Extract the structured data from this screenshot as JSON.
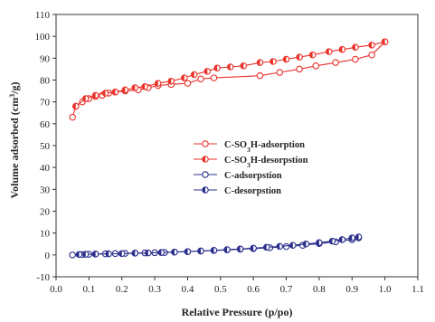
{
  "chart_data": {
    "type": "line",
    "title": "",
    "xlabel": "Relative Pressure (p/po)",
    "ylabel_parts": [
      "Volume adsorbed (cm",
      "3",
      "/g)"
    ],
    "xlim": [
      0.0,
      1.1
    ],
    "ylim": [
      -10,
      110
    ],
    "xticks": [
      "0.0",
      "0.1",
      "0.2",
      "0.3",
      "0.4",
      "0.5",
      "0.6",
      "0.7",
      "0.8",
      "0.9",
      "1.0",
      "1.1"
    ],
    "yticks": [
      "-10",
      "0",
      "10",
      "20",
      "30",
      "40",
      "50",
      "60",
      "70",
      "80",
      "90",
      "100",
      "110"
    ],
    "grid": false,
    "legend_position": "center",
    "series": [
      {
        "name_parts": [
          "C-SO",
          "3",
          "H-adsorption"
        ],
        "color": "#e8322a",
        "marker": "open",
        "x": [
          0.05,
          0.06,
          0.08,
          0.1,
          0.12,
          0.14,
          0.16,
          0.18,
          0.21,
          0.25,
          0.28,
          0.31,
          0.35,
          0.4,
          0.44,
          0.48,
          0.62,
          0.68,
          0.74,
          0.79,
          0.85,
          0.91,
          0.96,
          1.0
        ],
        "y": [
          63,
          68,
          70,
          71.5,
          72.5,
          73,
          74,
          74.5,
          75,
          75.5,
          76.5,
          77.5,
          78,
          78.5,
          80.5,
          81,
          82,
          83.5,
          85,
          86.5,
          88,
          89.5,
          91.5,
          97.5
        ]
      },
      {
        "name_parts": [
          "C-SO",
          "3",
          "H-desorpstion"
        ],
        "color": "#e8322a",
        "marker": "half",
        "x": [
          1.0,
          0.96,
          0.91,
          0.87,
          0.83,
          0.78,
          0.74,
          0.7,
          0.66,
          0.62,
          0.57,
          0.53,
          0.49,
          0.46,
          0.42,
          0.39,
          0.35,
          0.31,
          0.27,
          0.24,
          0.21,
          0.18,
          0.15,
          0.12,
          0.09,
          0.06
        ],
        "y": [
          97.5,
          96,
          95,
          94,
          93,
          91.5,
          90.5,
          89.5,
          88.5,
          88,
          86.5,
          86,
          85.5,
          84,
          82.5,
          81,
          79.5,
          78.5,
          77,
          76.5,
          75.5,
          74.5,
          74,
          73,
          71.5,
          68
        ]
      },
      {
        "name_parts": [
          "C-adsorpstion"
        ],
        "color": "#2b2f8c",
        "marker": "open",
        "x": [
          0.05,
          0.08,
          0.1,
          0.12,
          0.15,
          0.18,
          0.21,
          0.24,
          0.27,
          0.3,
          0.33,
          0.36,
          0.4,
          0.44,
          0.48,
          0.52,
          0.56,
          0.6,
          0.65,
          0.7,
          0.75,
          0.8,
          0.85,
          0.9,
          0.92
        ],
        "y": [
          0,
          0.2,
          0.3,
          0.4,
          0.5,
          0.6,
          0.7,
          0.8,
          0.9,
          1.0,
          1.1,
          1.3,
          1.5,
          1.8,
          2.0,
          2.3,
          2.6,
          2.9,
          3.3,
          3.8,
          4.4,
          5.2,
          6.0,
          7.0,
          7.8
        ]
      },
      {
        "name_parts": [
          "C-desorpstion"
        ],
        "color": "#2b2f8c",
        "marker": "half",
        "x": [
          0.92,
          0.9,
          0.87,
          0.84,
          0.8,
          0.76,
          0.72,
          0.68,
          0.64,
          0.6,
          0.56,
          0.52,
          0.48,
          0.44,
          0.4,
          0.36,
          0.32,
          0.28,
          0.24,
          0.2,
          0.16,
          0.12,
          0.09,
          0.07
        ],
        "y": [
          8.2,
          7.8,
          7.0,
          6.3,
          5.6,
          5.0,
          4.4,
          3.9,
          3.5,
          3.1,
          2.7,
          2.4,
          2.1,
          1.8,
          1.5,
          1.3,
          1.1,
          0.9,
          0.8,
          0.6,
          0.5,
          0.4,
          0.3,
          0.2
        ]
      }
    ]
  }
}
